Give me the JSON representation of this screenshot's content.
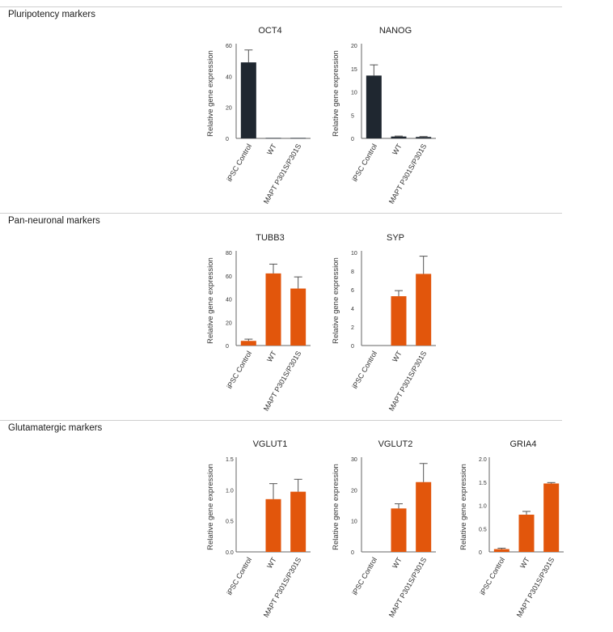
{
  "sections": [
    {
      "title": "Pluripotency markers"
    },
    {
      "title": "Pan-neuronal markers"
    },
    {
      "title": "Glutamatergic markers"
    }
  ],
  "colors": {
    "pluripotency_bar": "#1f2730",
    "neuronal_bar": "#e2560c",
    "error_bar": "#555555",
    "axis": "#666666"
  },
  "chart_data": [
    {
      "type": "bar",
      "title": "OCT4",
      "ylabel": "Relative gene expression",
      "categories": [
        "iPSC Control",
        "WT",
        "MAPT P301S/P301S"
      ],
      "values": [
        49,
        0.3,
        0.3
      ],
      "errors": [
        8,
        0,
        0
      ],
      "yticks": [
        "0",
        "20",
        "40",
        "60"
      ],
      "ylim": [
        0,
        60
      ]
    },
    {
      "type": "bar",
      "title": "NANOG",
      "ylabel": "Relative gene expression",
      "categories": [
        "iPSC Control",
        "WT",
        "MAPT P301S/P301S"
      ],
      "values": [
        13.5,
        0.4,
        0.3
      ],
      "errors": [
        2.3,
        0.1,
        0.1
      ],
      "yticks": [
        "0",
        "5",
        "10",
        "15",
        "20"
      ],
      "ylim": [
        0,
        20
      ]
    },
    {
      "type": "bar",
      "title": "TUBB3",
      "ylabel": "Relative gene expression",
      "categories": [
        "iPSC Control",
        "WT",
        "MAPT P301S/P301S"
      ],
      "values": [
        4,
        62,
        49
      ],
      "errors": [
        1.5,
        8,
        10
      ],
      "yticks": [
        "0",
        "20",
        "40",
        "60",
        "80"
      ],
      "ylim": [
        0,
        80
      ]
    },
    {
      "type": "bar",
      "title": "SYP",
      "ylabel": "Relative gene expression",
      "categories": [
        "iPSC Control",
        "WT",
        "MAPT P301S/P301S"
      ],
      "values": [
        0,
        5.3,
        7.7
      ],
      "errors": [
        0,
        0.6,
        1.9
      ],
      "yticks": [
        "0",
        "2",
        "4",
        "6",
        "8",
        "10"
      ],
      "ylim": [
        0,
        10
      ]
    },
    {
      "type": "bar",
      "title": "VGLUT1",
      "ylabel": "Relative gene expression",
      "categories": [
        "iPSC Control",
        "WT",
        "MAPT P301S/P301S"
      ],
      "values": [
        0,
        0.85,
        0.97
      ],
      "errors": [
        0,
        0.25,
        0.2
      ],
      "yticks": [
        "0.0",
        "0.5",
        "1.0",
        "1.5"
      ],
      "ylim": [
        0,
        1.5
      ]
    },
    {
      "type": "bar",
      "title": "VGLUT2",
      "ylabel": "Relative gene expression",
      "categories": [
        "iPSC Control",
        "WT",
        "MAPT P301S/P301S"
      ],
      "values": [
        0,
        14,
        22.5
      ],
      "errors": [
        0,
        1.5,
        6
      ],
      "yticks": [
        "0",
        "10",
        "20",
        "30"
      ],
      "ylim": [
        0,
        30
      ]
    },
    {
      "type": "bar",
      "title": "GRIA4",
      "ylabel": "Relative gene expression",
      "categories": [
        "iPSC Control",
        "WT",
        "MAPT P301S/P301S"
      ],
      "values": [
        0.06,
        0.8,
        1.47
      ],
      "errors": [
        0.02,
        0.07,
        0.02
      ],
      "yticks": [
        "0",
        "0.5",
        "1.0",
        "1.5",
        "2.0"
      ],
      "ylim": [
        0,
        2.0
      ]
    }
  ]
}
